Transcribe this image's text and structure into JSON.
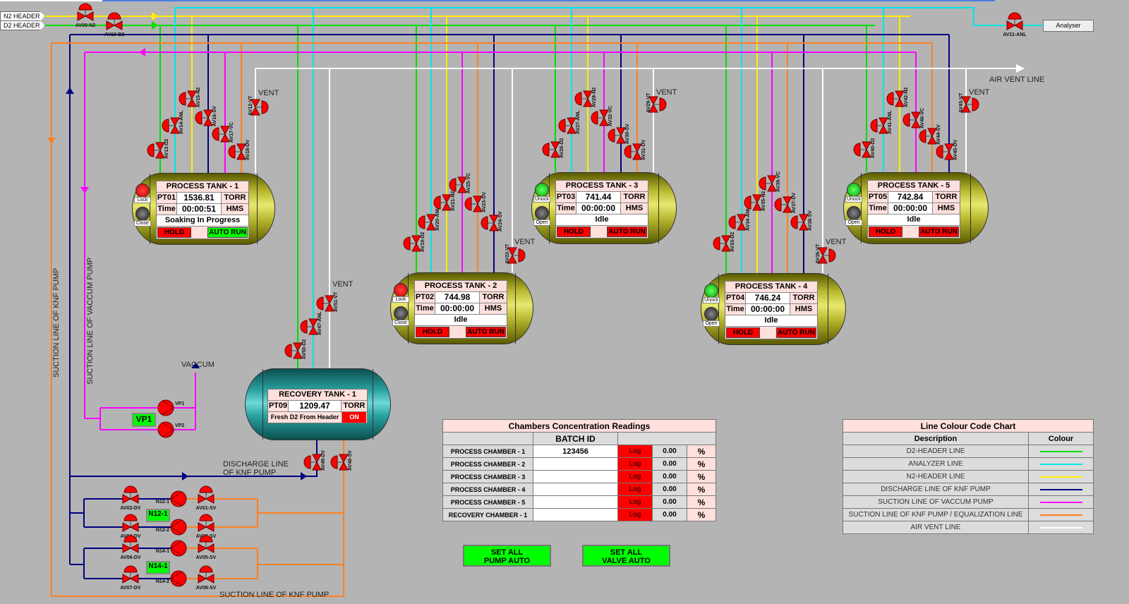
{
  "headers": {
    "n2": "N2 HEADER",
    "d2": "D2 HEADER",
    "analyser": "Analyser"
  },
  "line_labels": {
    "air_vent": "AIR VENT LINE",
    "vent": "VENT",
    "vaccum": "VACCUM",
    "suction_knf_vertical": "SUCTION LINE OF KNF PUMP",
    "suction_vac_vertical": "SUCTION LINE OF VACCUM PUMP",
    "discharge_1": "DISCHARGE LINE",
    "discharge_2": "OF KNF PUMP",
    "suction_knf_bottom": "SUCTION LINE OF KNF PUMP"
  },
  "colors": {
    "d2": "#00dd00",
    "analyzer": "#00e5e5",
    "n2": "#ffee00",
    "discharge": "#000080",
    "vac_suction": "#ff00ff",
    "knf_suction": "#ff8020",
    "air_vent": "#ffffff",
    "valve": "#ff0000"
  },
  "tanks": [
    {
      "title": "PROCESS TANK - 1",
      "sensor": "PT01",
      "pressure": "1536.81",
      "unit": "TORR",
      "time_label": "Time",
      "time": "00:00:51",
      "time_unit": "HMS",
      "status": "Soaking In Progress",
      "lock_state": "Lock",
      "door_state": "Close",
      "locked": true,
      "auto_run_active": true,
      "hold": "HOLD",
      "auto_run": "AUTO RUN"
    },
    {
      "title": "PROCESS TANK - 2",
      "sensor": "PT02",
      "pressure": "744.98",
      "unit": "TORR",
      "time_label": "Time",
      "time": "00:00:00",
      "time_unit": "HMS",
      "status": "Idle",
      "lock_state": "Lock",
      "door_state": "Close",
      "locked": true,
      "auto_run_active": false,
      "hold": "HOLD",
      "auto_run": "AUTO RUN"
    },
    {
      "title": "PROCESS TANK - 3",
      "sensor": "PT03",
      "pressure": "741.44",
      "unit": "TORR",
      "time_label": "Time",
      "time": "00:00:00",
      "time_unit": "HMS",
      "status": "Idle",
      "lock_state": "Unock",
      "door_state": "Open",
      "locked": false,
      "auto_run_active": false,
      "hold": "HOLD",
      "auto_run": "AUTO RUN"
    },
    {
      "title": "PROCESS TANK - 4",
      "sensor": "PT04",
      "pressure": "746.24",
      "unit": "TORR",
      "time_label": "Time",
      "time": "00:00:00",
      "time_unit": "HMS",
      "status": "Idle",
      "lock_state": "Unock",
      "door_state": "Open",
      "locked": false,
      "auto_run_active": false,
      "hold": "HOLD",
      "auto_run": "AUTO RUN"
    },
    {
      "title": "PROCESS TANK - 5",
      "sensor": "PT05",
      "pressure": "742.84",
      "unit": "TORR",
      "time_label": "Time",
      "time": "00:00:00",
      "time_unit": "HMS",
      "status": "Idle",
      "lock_state": "Unock",
      "door_state": "Open",
      "locked": false,
      "auto_run_active": false,
      "hold": "HOLD",
      "auto_run": "AUTO RUN"
    }
  ],
  "recovery": {
    "title": "RECOVERY TANK - 1",
    "sensor": "PT09",
    "pressure": "1209.47",
    "unit": "TORR",
    "status": "Fresh D2 From Header",
    "state": "ON"
  },
  "valves": [
    "AV09-N2",
    "AV10-D2",
    "AV11-ANL",
    "AV13-D2",
    "AV14-ANL",
    "AV15-N2",
    "AV16-SV",
    "AV17-VC",
    "AV18-DV",
    "AV12-VT",
    "AV19-D2",
    "AV20-ANL",
    "AV21-N2",
    "AV25-VC",
    "AV23-DV",
    "AV24-SV",
    "AV22-VT",
    "AV26-D2",
    "AV27-ANL",
    "AV28-N2",
    "AV32-VC",
    "AV30-SV",
    "AV31-DV",
    "AV29-VT",
    "AV33-D2",
    "AV34-ANL",
    "AV35-N2",
    "AV39-VC",
    "AV37-DV",
    "AV38-SV",
    "AV36-VT",
    "AV40-D2",
    "AV41-ANL",
    "AV42-N2",
    "AV46-VC",
    "AV44-SV",
    "AV45-DV",
    "AV43-VT",
    "AV50-D2",
    "AV47-ANL",
    "AV51-VT",
    "AV49-DV",
    "AV48-SV",
    "AV02-DV",
    "AV01-SV",
    "AV04-DV",
    "AV03-SV",
    "AV06-DV",
    "AV05-SV",
    "AV07-DV",
    "AV08-SV"
  ],
  "pumps": {
    "vp_labels": [
      "VP1",
      "VP2"
    ],
    "vp_group": "VP1",
    "knf_labels": [
      "N12-1",
      "N12-2",
      "N14-1",
      "N14-2"
    ],
    "knf_groups": [
      "N12-1",
      "N14-1"
    ]
  },
  "concentration": {
    "title": "Chambers Concentration Readings",
    "batch_header": "BATCH ID",
    "rows": [
      {
        "name": "PROCESS CHAMBER - 1",
        "batch": "123456",
        "log": "Log",
        "value": "0.00",
        "unit": "%"
      },
      {
        "name": "PROCESS CHAMBER - 2",
        "batch": "",
        "log": "Log",
        "value": "0.00",
        "unit": "%"
      },
      {
        "name": "PROCESS CHAMBER - 3",
        "batch": "",
        "log": "Log",
        "value": "0.00",
        "unit": "%"
      },
      {
        "name": "PROCESS CHAMBER - 4",
        "batch": "",
        "log": "Log",
        "value": "0.00",
        "unit": "%"
      },
      {
        "name": "PROCESS CHAMBER - 5",
        "batch": "",
        "log": "Log",
        "value": "0.00",
        "unit": "%"
      },
      {
        "name": "RECOVERY CHAMBER - 1",
        "batch": "",
        "log": "Log",
        "value": "0.00",
        "unit": "%"
      }
    ]
  },
  "buttons": {
    "pump_auto_1": "SET ALL",
    "pump_auto_2": "PUMP AUTO",
    "valve_auto_1": "SET ALL",
    "valve_auto_2": "VALVE AUTO"
  },
  "legend": {
    "title": "Line Colour Code Chart",
    "desc_header": "Description",
    "colour_header": "Colour",
    "rows": [
      {
        "label": "D2-HEADER LINE",
        "color": "#00dd00"
      },
      {
        "label": "ANALYZER LINE",
        "color": "#00e5e5"
      },
      {
        "label": "N2-HEADER LINE",
        "color": "#ffee00"
      },
      {
        "label": "DISCHARGE LINE OF KNF PUMP",
        "color": "#000080"
      },
      {
        "label": "SUCTION LINE OF VACCUM PUMP",
        "color": "#ff00ff"
      },
      {
        "label": "SUCTION LINE OF KNF PUMP / EQUALIZATION LINE",
        "color": "#ff8020"
      },
      {
        "label": "AIR VENT LINE",
        "color": "#ffffff"
      }
    ]
  }
}
